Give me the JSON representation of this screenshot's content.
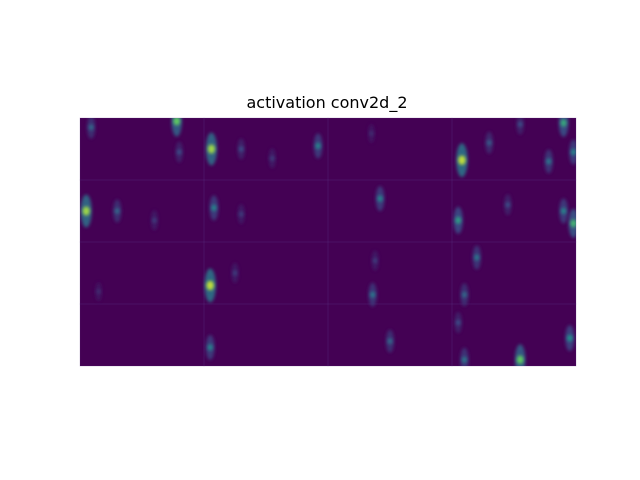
{
  "chart_data": {
    "type": "heatmap",
    "title": "activation conv2d_2",
    "colormap": "viridis",
    "axes_visible": false,
    "grid": "4 rows x 4 columns of feature-map tiles",
    "tile_rows": 4,
    "tile_cols": 4,
    "background_value": 0.0,
    "colors": {
      "low": "#440154",
      "mid_low": "#3b528b",
      "mid": "#21918c",
      "mid_high": "#5ec962",
      "high": "#fde725"
    },
    "hotspots": [
      {
        "tile_row": 0,
        "tile_col": 0,
        "u": 0.09,
        "v": 0.15,
        "value": 0.35
      },
      {
        "tile_row": 0,
        "tile_col": 0,
        "u": 0.78,
        "v": 0.05,
        "value": 0.75
      },
      {
        "tile_row": 0,
        "tile_col": 0,
        "u": 0.8,
        "v": 0.55,
        "value": 0.25
      },
      {
        "tile_row": 0,
        "tile_col": 1,
        "u": 0.06,
        "v": 0.5,
        "value": 0.85
      },
      {
        "tile_row": 0,
        "tile_col": 1,
        "u": 0.3,
        "v": 0.5,
        "value": 0.25
      },
      {
        "tile_row": 0,
        "tile_col": 1,
        "u": 0.55,
        "v": 0.65,
        "value": 0.2
      },
      {
        "tile_row": 0,
        "tile_col": 1,
        "u": 0.92,
        "v": 0.45,
        "value": 0.45
      },
      {
        "tile_row": 0,
        "tile_col": 2,
        "u": 0.35,
        "v": 0.25,
        "value": 0.15
      },
      {
        "tile_row": 0,
        "tile_col": 3,
        "u": 0.08,
        "v": 0.68,
        "value": 0.9
      },
      {
        "tile_row": 0,
        "tile_col": 3,
        "u": 0.3,
        "v": 0.4,
        "value": 0.3
      },
      {
        "tile_row": 0,
        "tile_col": 3,
        "u": 0.55,
        "v": 0.1,
        "value": 0.25
      },
      {
        "tile_row": 0,
        "tile_col": 3,
        "u": 0.78,
        "v": 0.7,
        "value": 0.4
      },
      {
        "tile_row": 0,
        "tile_col": 3,
        "u": 0.9,
        "v": 0.08,
        "value": 0.6
      },
      {
        "tile_row": 0,
        "tile_col": 3,
        "u": 0.98,
        "v": 0.55,
        "value": 0.45
      },
      {
        "tile_row": 1,
        "tile_col": 0,
        "u": 0.05,
        "v": 0.5,
        "value": 0.85
      },
      {
        "tile_row": 1,
        "tile_col": 0,
        "u": 0.3,
        "v": 0.5,
        "value": 0.35
      },
      {
        "tile_row": 1,
        "tile_col": 0,
        "u": 0.6,
        "v": 0.65,
        "value": 0.2
      },
      {
        "tile_row": 1,
        "tile_col": 1,
        "u": 0.08,
        "v": 0.45,
        "value": 0.45
      },
      {
        "tile_row": 1,
        "tile_col": 1,
        "u": 0.3,
        "v": 0.55,
        "value": 0.2
      },
      {
        "tile_row": 1,
        "tile_col": 2,
        "u": 0.42,
        "v": 0.3,
        "value": 0.45
      },
      {
        "tile_row": 1,
        "tile_col": 3,
        "u": 0.05,
        "v": 0.65,
        "value": 0.55
      },
      {
        "tile_row": 1,
        "tile_col": 3,
        "u": 0.45,
        "v": 0.4,
        "value": 0.25
      },
      {
        "tile_row": 1,
        "tile_col": 3,
        "u": 0.9,
        "v": 0.5,
        "value": 0.45
      },
      {
        "tile_row": 1,
        "tile_col": 3,
        "u": 0.98,
        "v": 0.7,
        "value": 0.65
      },
      {
        "tile_row": 2,
        "tile_col": 0,
        "u": 0.15,
        "v": 0.8,
        "value": 0.15
      },
      {
        "tile_row": 2,
        "tile_col": 1,
        "u": 0.05,
        "v": 0.7,
        "value": 0.9
      },
      {
        "tile_row": 2,
        "tile_col": 1,
        "u": 0.25,
        "v": 0.5,
        "value": 0.2
      },
      {
        "tile_row": 2,
        "tile_col": 2,
        "u": 0.38,
        "v": 0.3,
        "value": 0.2
      },
      {
        "tile_row": 2,
        "tile_col": 2,
        "u": 0.36,
        "v": 0.85,
        "value": 0.4
      },
      {
        "tile_row": 2,
        "tile_col": 3,
        "u": 0.2,
        "v": 0.25,
        "value": 0.4
      },
      {
        "tile_row": 2,
        "tile_col": 3,
        "u": 0.1,
        "v": 0.85,
        "value": 0.35
      },
      {
        "tile_row": 3,
        "tile_col": 1,
        "u": 0.05,
        "v": 0.7,
        "value": 0.45
      },
      {
        "tile_row": 3,
        "tile_col": 2,
        "u": 0.5,
        "v": 0.6,
        "value": 0.35
      },
      {
        "tile_row": 3,
        "tile_col": 3,
        "u": 0.05,
        "v": 0.3,
        "value": 0.25
      },
      {
        "tile_row": 3,
        "tile_col": 3,
        "u": 0.1,
        "v": 0.9,
        "value": 0.4
      },
      {
        "tile_row": 3,
        "tile_col": 3,
        "u": 0.55,
        "v": 0.9,
        "value": 0.75
      },
      {
        "tile_row": 3,
        "tile_col": 3,
        "u": 0.95,
        "v": 0.55,
        "value": 0.5
      }
    ]
  }
}
